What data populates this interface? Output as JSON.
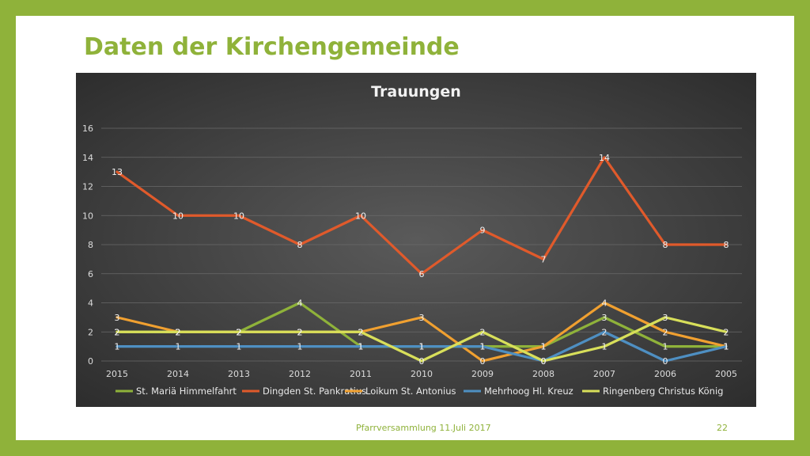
{
  "slide": {
    "title": "Daten der Kirchengemeinde",
    "footer_text": "Pfarrversammlung 11.Juli 2017",
    "page_number": "22",
    "accent_color": "#8fb23a"
  },
  "chart_data": {
    "type": "line",
    "title": "Trauungen",
    "categories": [
      "2015",
      "2014",
      "2013",
      "2012",
      "2011",
      "2010",
      "2009",
      "2008",
      "2007",
      "2006",
      "2005"
    ],
    "ylim": [
      0,
      16
    ],
    "yticks": [
      0,
      2,
      4,
      6,
      8,
      10,
      12,
      14,
      16
    ],
    "grid": true,
    "legend_position": "bottom",
    "series": [
      {
        "name": "St. Mariä Himmelfahrt",
        "color": "#8fb23a",
        "values": [
          2,
          2,
          2,
          4,
          1,
          1,
          1,
          1,
          3,
          1,
          1
        ],
        "labels": [
          "2",
          "2",
          "2",
          "4",
          "1",
          "1",
          "1",
          "1",
          "3",
          "1",
          "1"
        ]
      },
      {
        "name": "Dingden St. Pankratius",
        "color": "#e05a2b",
        "values": [
          13,
          10,
          10,
          8,
          10,
          6,
          9,
          7,
          14,
          8,
          8
        ],
        "labels": [
          "13",
          "10",
          "10",
          "8",
          "10",
          "6",
          "9",
          "7",
          "14",
          "8",
          "8"
        ]
      },
      {
        "name": "Loikum St. Antonius",
        "color": "#f0a030",
        "values": [
          3,
          2,
          2,
          2,
          2,
          3,
          0,
          1,
          4,
          2,
          1
        ],
        "labels": [
          "3",
          "2",
          "2",
          "2",
          "2",
          "3",
          "0",
          "1",
          "4",
          "2",
          "1"
        ]
      },
      {
        "name": "Mehrhoog Hl. Kreuz",
        "color": "#4e8fc2",
        "values": [
          1,
          1,
          1,
          1,
          1,
          1,
          1,
          0,
          2,
          0,
          1
        ],
        "labels": [
          "1",
          "1",
          "1",
          "1",
          "1",
          "1",
          "1",
          "0",
          "2",
          "0",
          "1"
        ]
      },
      {
        "name": "Ringenberg Christus König",
        "color": "#d8df5a",
        "values": [
          2,
          2,
          2,
          2,
          2,
          0,
          2,
          0,
          1,
          3,
          2
        ],
        "labels": [
          "2",
          "2",
          "2",
          "2",
          "2",
          "0",
          "2",
          "0",
          "1",
          "3",
          "2"
        ]
      }
    ]
  }
}
